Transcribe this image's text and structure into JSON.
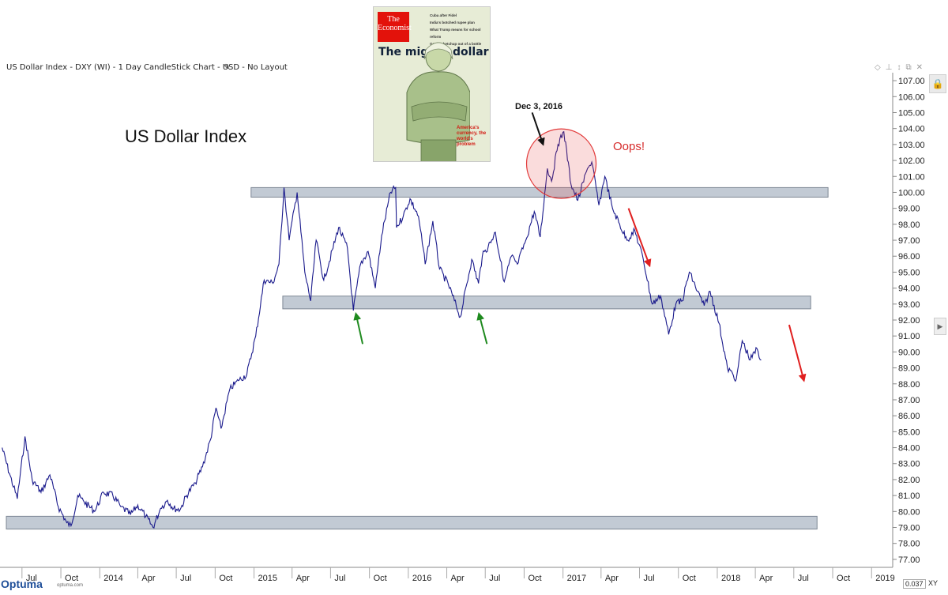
{
  "header": {
    "title": "US Dollar Index - DXY (WI) - 1 Day CandleStick Chart - USD - No Layout"
  },
  "chart_data": {
    "type": "line",
    "title": "US Dollar Index",
    "ylim": [
      76.5,
      107.5
    ],
    "y_ticks": [
      "77.00",
      "78.00",
      "79.00",
      "80.00",
      "81.00",
      "82.00",
      "83.00",
      "84.00",
      "85.00",
      "86.00",
      "87.00",
      "88.00",
      "89.00",
      "90.00",
      "91.00",
      "92.00",
      "93.00",
      "94.00",
      "95.00",
      "96.00",
      "97.00",
      "98.00",
      "99.00",
      "100.00",
      "101.00",
      "102.00",
      "103.00",
      "104.00",
      "105.00",
      "106.00",
      "107.00"
    ],
    "x_ticks": [
      {
        "label": "Jul",
        "date": "2013-07"
      },
      {
        "label": "Oct",
        "date": "2013-10"
      },
      {
        "label": "2014",
        "date": "2014-01"
      },
      {
        "label": "Apr",
        "date": "2014-04"
      },
      {
        "label": "Jul",
        "date": "2014-07"
      },
      {
        "label": "Oct",
        "date": "2014-10"
      },
      {
        "label": "2015",
        "date": "2015-01"
      },
      {
        "label": "Apr",
        "date": "2015-04"
      },
      {
        "label": "Jul",
        "date": "2015-07"
      },
      {
        "label": "Oct",
        "date": "2015-10"
      },
      {
        "label": "2016",
        "date": "2016-01"
      },
      {
        "label": "Apr",
        "date": "2016-04"
      },
      {
        "label": "Jul",
        "date": "2016-07"
      },
      {
        "label": "Oct",
        "date": "2016-10"
      },
      {
        "label": "2017",
        "date": "2017-01"
      },
      {
        "label": "Apr",
        "date": "2017-04"
      },
      {
        "label": "Jul",
        "date": "2017-07"
      },
      {
        "label": "Oct",
        "date": "2017-10"
      },
      {
        "label": "2018",
        "date": "2018-01"
      },
      {
        "label": "Apr",
        "date": "2018-04"
      },
      {
        "label": "Jul",
        "date": "2018-07"
      },
      {
        "label": "Oct",
        "date": "2018-10"
      },
      {
        "label": "2019",
        "date": "2019-01"
      }
    ],
    "series": [
      {
        "color": "#1a1a8c",
        "points": [
          [
            "2013-05-15",
            84.0
          ],
          [
            "2013-06-01",
            82.4
          ],
          [
            "2013-06-20",
            80.8
          ],
          [
            "2013-07-08",
            84.7
          ],
          [
            "2013-07-25",
            82.0
          ],
          [
            "2013-08-15",
            81.2
          ],
          [
            "2013-09-05",
            82.3
          ],
          [
            "2013-09-25",
            80.3
          ],
          [
            "2013-10-15",
            79.3
          ],
          [
            "2013-10-25",
            79.1
          ],
          [
            "2013-11-10",
            81.0
          ],
          [
            "2013-11-25",
            80.6
          ],
          [
            "2013-12-20",
            80.0
          ],
          [
            "2014-01-10",
            81.2
          ],
          [
            "2014-02-01",
            81.0
          ],
          [
            "2014-02-20",
            80.3
          ],
          [
            "2014-03-15",
            79.8
          ],
          [
            "2014-04-01",
            80.4
          ],
          [
            "2014-04-20",
            79.7
          ],
          [
            "2014-05-07",
            79.0
          ],
          [
            "2014-05-25",
            80.2
          ],
          [
            "2014-06-10",
            80.7
          ],
          [
            "2014-06-25",
            80.2
          ],
          [
            "2014-07-10",
            80.1
          ],
          [
            "2014-07-25",
            81.0
          ],
          [
            "2014-08-15",
            81.8
          ],
          [
            "2014-09-01",
            82.8
          ],
          [
            "2014-09-20",
            84.5
          ],
          [
            "2014-10-03",
            86.5
          ],
          [
            "2014-10-15",
            85.2
          ],
          [
            "2014-11-05",
            87.7
          ],
          [
            "2014-11-25",
            88.2
          ],
          [
            "2014-12-15",
            88.6
          ],
          [
            "2015-01-05",
            91.0
          ],
          [
            "2015-01-25",
            94.5
          ],
          [
            "2015-02-15",
            94.3
          ],
          [
            "2015-03-01",
            95.5
          ],
          [
            "2015-03-13",
            100.3
          ],
          [
            "2015-03-25",
            97.0
          ],
          [
            "2015-04-13",
            100.0
          ],
          [
            "2015-05-01",
            95.0
          ],
          [
            "2015-05-15",
            93.2
          ],
          [
            "2015-05-28",
            97.0
          ],
          [
            "2015-06-15",
            94.5
          ],
          [
            "2015-07-07",
            96.5
          ],
          [
            "2015-07-20",
            97.8
          ],
          [
            "2015-08-10",
            96.5
          ],
          [
            "2015-08-24",
            92.6
          ],
          [
            "2015-09-10",
            95.5
          ],
          [
            "2015-09-28",
            96.3
          ],
          [
            "2015-10-15",
            94.0
          ],
          [
            "2015-10-30",
            97.3
          ],
          [
            "2015-11-20",
            100.0
          ],
          [
            "2015-12-02",
            100.3
          ],
          [
            "2015-12-04",
            97.8
          ],
          [
            "2015-12-20",
            98.5
          ],
          [
            "2016-01-05",
            99.6
          ],
          [
            "2016-01-25",
            98.5
          ],
          [
            "2016-02-10",
            95.5
          ],
          [
            "2016-02-28",
            98.2
          ],
          [
            "2016-03-15",
            95.2
          ],
          [
            "2016-04-05",
            94.2
          ],
          [
            "2016-05-03",
            92.2
          ],
          [
            "2016-05-30",
            95.8
          ],
          [
            "2016-06-15",
            94.3
          ],
          [
            "2016-06-24",
            96.0
          ],
          [
            "2016-07-08",
            96.6
          ],
          [
            "2016-07-25",
            97.5
          ],
          [
            "2016-08-15",
            94.4
          ],
          [
            "2016-09-01",
            96.0
          ],
          [
            "2016-09-15",
            95.5
          ],
          [
            "2016-10-05",
            97.0
          ],
          [
            "2016-10-25",
            98.8
          ],
          [
            "2016-11-08",
            97.2
          ],
          [
            "2016-11-25",
            101.5
          ],
          [
            "2016-12-05",
            100.7
          ],
          [
            "2016-12-20",
            103.0
          ],
          [
            "2017-01-03",
            103.8
          ],
          [
            "2017-01-20",
            100.5
          ],
          [
            "2017-02-05",
            99.5
          ],
          [
            "2017-02-28",
            101.5
          ],
          [
            "2017-03-10",
            101.9
          ],
          [
            "2017-03-27",
            99.2
          ],
          [
            "2017-04-10",
            101.0
          ],
          [
            "2017-04-28",
            99.0
          ],
          [
            "2017-05-15",
            98.0
          ],
          [
            "2017-06-01",
            97.0
          ],
          [
            "2017-06-20",
            97.6
          ],
          [
            "2017-07-10",
            95.8
          ],
          [
            "2017-07-31",
            93.0
          ],
          [
            "2017-08-20",
            93.5
          ],
          [
            "2017-09-08",
            91.1
          ],
          [
            "2017-09-25",
            93.0
          ],
          [
            "2017-10-10",
            93.2
          ],
          [
            "2017-10-27",
            95.0
          ],
          [
            "2017-11-15",
            93.8
          ],
          [
            "2017-12-01",
            92.9
          ],
          [
            "2017-12-15",
            93.8
          ],
          [
            "2018-01-05",
            91.8
          ],
          [
            "2018-01-25",
            89.0
          ],
          [
            "2018-02-15",
            88.3
          ],
          [
            "2018-03-01",
            90.7
          ],
          [
            "2018-03-20",
            89.5
          ],
          [
            "2018-04-05",
            90.2
          ],
          [
            "2018-04-15",
            89.5
          ]
        ]
      }
    ],
    "zones": [
      {
        "from": "2013-05-25",
        "to": "2018-08-25",
        "low": 78.9,
        "high": 79.7
      },
      {
        "from": "2015-03-10",
        "to": "2018-08-10",
        "low": 92.7,
        "high": 93.5
      },
      {
        "from": "2014-12-25",
        "to": "2018-09-20",
        "low": 99.7,
        "high": 100.3
      }
    ],
    "highlight": {
      "center_date": "2016-12-28",
      "center_value": 101.8,
      "color": "#e23b3b"
    },
    "arrows": [
      {
        "from": [
          "2015-09-15",
          90.5
        ],
        "to": [
          "2015-08-30",
          92.4
        ],
        "color": "#1f8a1f"
      },
      {
        "from": [
          "2016-07-05",
          90.5
        ],
        "to": [
          "2016-06-16",
          92.4
        ],
        "color": "#1f8a1f"
      },
      {
        "from": [
          "2016-10-20",
          105.0
        ],
        "to": [
          "2016-11-15",
          103.0
        ],
        "color": "#111111"
      },
      {
        "from": [
          "2017-06-05",
          99.0
        ],
        "to": [
          "2017-07-25",
          95.4
        ],
        "color": "#e01f1f"
      },
      {
        "from": [
          "2018-06-20",
          91.7
        ],
        "to": [
          "2018-07-25",
          88.2
        ],
        "color": "#e01f1f"
      }
    ],
    "annotations": {
      "big_title": "US Dollar Index",
      "date_label": "Dec 3, 2016",
      "oops": "Oops!"
    }
  },
  "cover": {
    "masthead": "The Economist",
    "headlines": [
      "Cuba after Fidel",
      "India's botched rupee plan",
      "What Trump means for school reform",
      "Getting ketchup out of a bottle"
    ],
    "title": "The mighty dollar",
    "subtitle": "America's currency, the world's problem"
  },
  "footer": {
    "logo": "Optuma",
    "logo_sub": "optuma.com",
    "scale_value": "0.037",
    "scale_unit": "XY"
  },
  "colors": {
    "line": "#1a1a8c",
    "zone": "#b7c1cc",
    "grid": "#e8e8e8"
  },
  "icons": [
    "diamond-icon",
    "pin-icon",
    "up-down-icon",
    "copy-icon",
    "close-icon",
    "pencil-icon",
    "lock-icon"
  ]
}
